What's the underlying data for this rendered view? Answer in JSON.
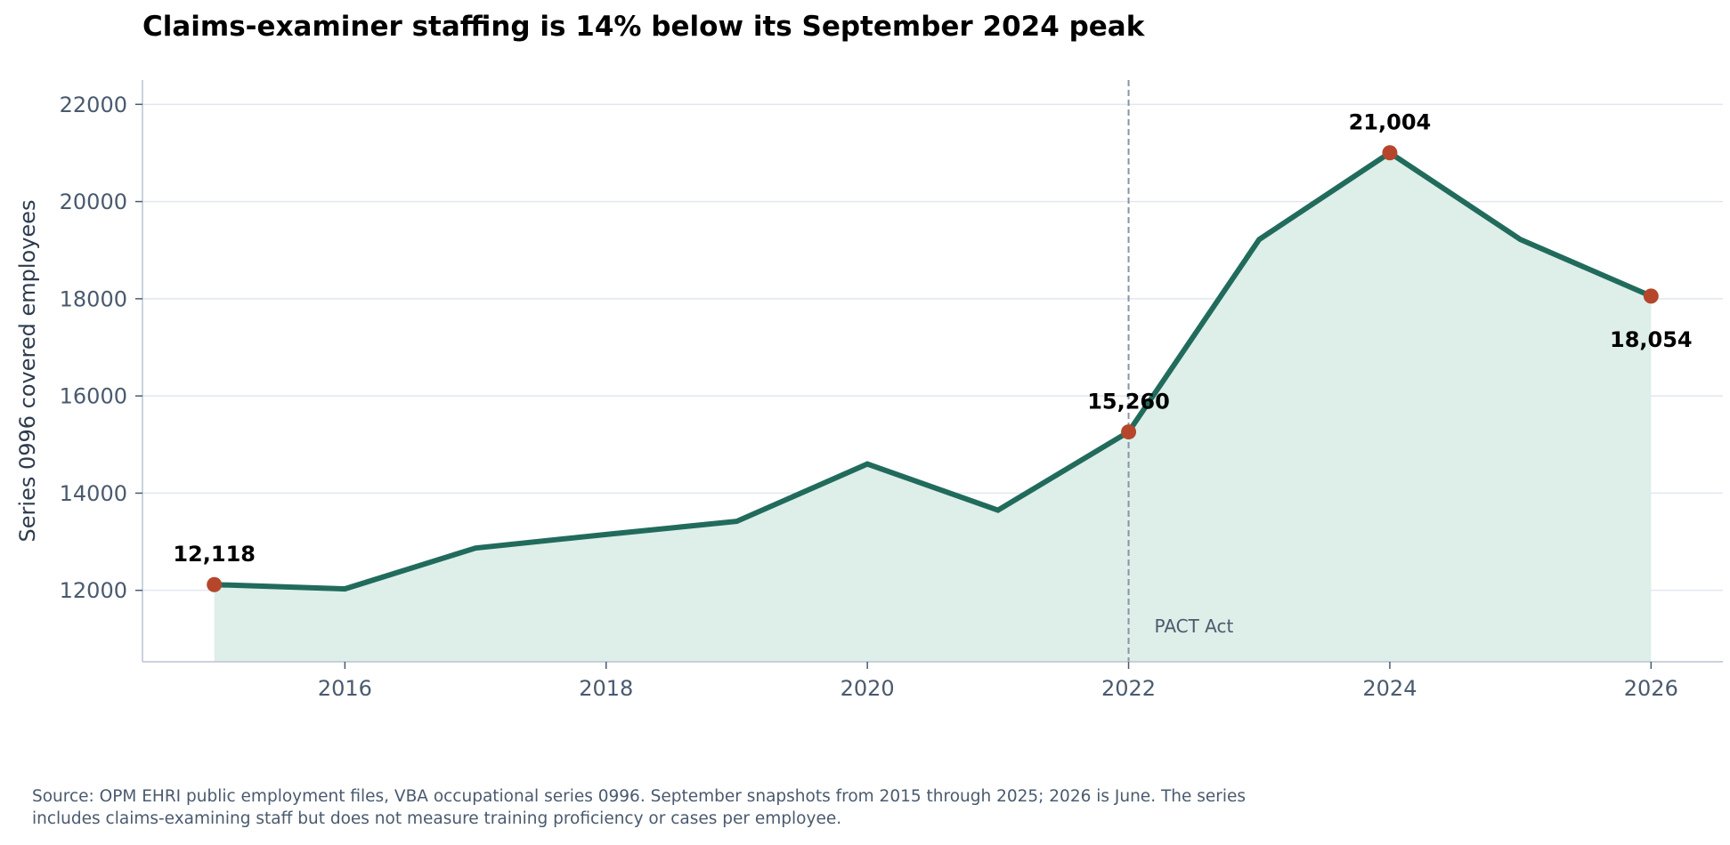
{
  "chart_data": {
    "type": "area",
    "title": "Claims-examiner staffing is 14% below its September 2024 peak",
    "xlabel": "",
    "ylabel": "Series 0996 covered employees",
    "x": [
      2015,
      2016,
      2017,
      2018,
      2019,
      2020,
      2021,
      2022,
      2023,
      2024,
      2025,
      2026
    ],
    "series": [
      {
        "values": [
          12118,
          12030,
          12870,
          13150,
          13420,
          14600,
          13650,
          15260,
          19220,
          21004,
          19220,
          18054
        ]
      }
    ],
    "xlim": [
      2014.45,
      2026.55
    ],
    "ylim": [
      10530,
      22500
    ],
    "x_ticks": [
      2016,
      2018,
      2020,
      2022,
      2024,
      2026
    ],
    "y_ticks": [
      12000,
      14000,
      16000,
      18000,
      20000,
      22000
    ],
    "grid": "horizontal",
    "annotated_points": [
      {
        "x": 2015,
        "y": 12118,
        "label": "12,118",
        "label_position": "above"
      },
      {
        "x": 2022,
        "y": 15260,
        "label": "15,260",
        "label_position": "above"
      },
      {
        "x": 2024,
        "y": 21004,
        "label": "21,004",
        "label_position": "above"
      },
      {
        "x": 2026,
        "y": 18054,
        "label": "18,054",
        "label_position": "below"
      }
    ],
    "reference_line": {
      "x": 2022,
      "label": "PACT Act"
    },
    "colors": {
      "line": "#216b5c",
      "fill": "#deeee8",
      "marker": "#b5462c",
      "reference_line": "#8a94a6",
      "grid": "#e1e6ef",
      "axis": "#b8c4d4",
      "tick_text": "#4a5a6e"
    }
  },
  "source_note": {
    "line1": "Source: OPM EHRI public employment files, VBA occupational series 0996. September snapshots from 2015 through 2025; 2026 is June. The series",
    "line2": "includes claims-examining staff but does not measure training proficiency or cases per employee."
  }
}
